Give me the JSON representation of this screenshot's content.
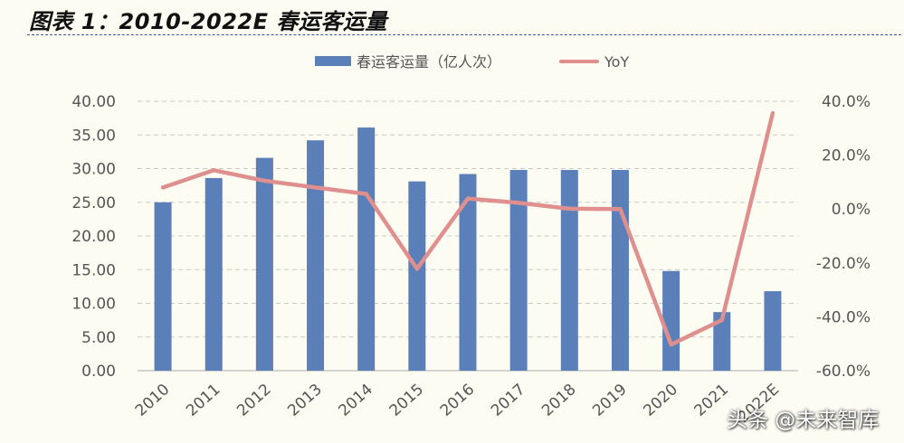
{
  "title": "图表 1：2010-2022E 春运客运量",
  "watermark": "头条 @未来智库",
  "chart_data": {
    "type": "bar",
    "categories": [
      "2010",
      "2011",
      "2012",
      "2013",
      "2014",
      "2015",
      "2016",
      "2017",
      "2018",
      "2019",
      "2020",
      "2021",
      "2022E"
    ],
    "series": [
      {
        "name": "春运客运量（亿人次）",
        "type": "bar",
        "axis": "left",
        "color": "#5b7fb8",
        "values": [
          25.0,
          28.6,
          31.6,
          34.2,
          36.1,
          28.1,
          29.2,
          29.8,
          29.8,
          29.8,
          14.8,
          8.7,
          11.8
        ]
      },
      {
        "name": "YoY",
        "type": "line",
        "axis": "right",
        "color": "#e08f8f",
        "values": [
          8.0,
          14.4,
          10.5,
          8.0,
          5.6,
          -22.2,
          3.9,
          2.3,
          0.1,
          0.0,
          -50.3,
          -41.2,
          35.6
        ]
      }
    ],
    "y_left": {
      "range": [
        0,
        40
      ],
      "ticks": [
        "0.00",
        "5.00",
        "10.00",
        "15.00",
        "20.00",
        "25.00",
        "30.00",
        "35.00",
        "40.00"
      ]
    },
    "y_right": {
      "range": [
        -60,
        40
      ],
      "ticks": [
        "-60.0%",
        "-40.0%",
        "-20.0%",
        "0.0%",
        "20.0%",
        "40.0%"
      ]
    },
    "grid": "horizontal-dashed",
    "legend": "top-center"
  }
}
